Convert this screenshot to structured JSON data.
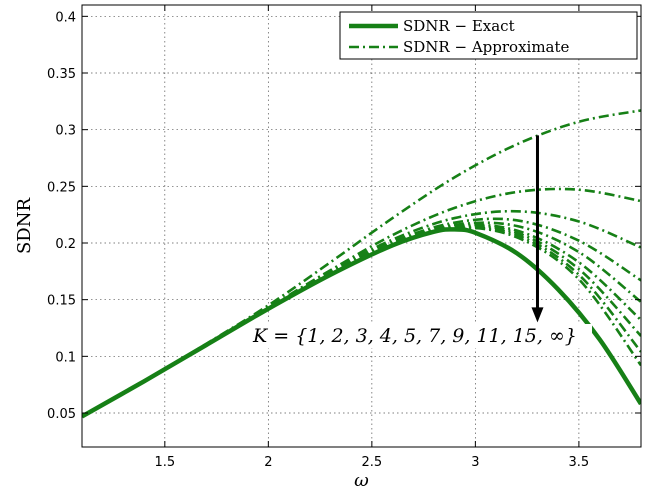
{
  "chart_data": {
    "type": "line",
    "xlabel": "ω",
    "ylabel": "SDNR",
    "xlim": [
      1.1,
      3.8
    ],
    "ylim": [
      0.02,
      0.41
    ],
    "xticks": [
      1.5,
      2,
      2.5,
      3,
      3.5
    ],
    "xtick_labels": [
      "1.5",
      "2",
      "2.5",
      "3",
      "3.5"
    ],
    "yticks": [
      0.05,
      0.1,
      0.15,
      0.2,
      0.25,
      0.3,
      0.35,
      0.4
    ],
    "ytick_labels": [
      "0.05",
      "0.1",
      "0.15",
      "0.2",
      "0.25",
      "0.3",
      "0.35",
      "0.4"
    ],
    "grid": true,
    "legend_position": "top-right",
    "color": "#168016",
    "series": [
      {
        "name": "SDNR − Exact",
        "style": "solid",
        "x": [
          1.1,
          1.4,
          1.7,
          2.0,
          2.3,
          2.6,
          2.8,
          2.9,
          3.0,
          3.2,
          3.4,
          3.6,
          3.8
        ],
        "y": [
          0.047,
          0.078,
          0.11,
          0.142,
          0.172,
          0.198,
          0.21,
          0.212,
          0.209,
          0.191,
          0.159,
          0.115,
          0.058
        ]
      },
      {
        "name": "SDNR − Approximate",
        "style": "dashdot",
        "x": [
          1.1,
          1.4,
          1.7,
          2.0,
          2.3,
          2.6,
          2.9,
          3.2,
          3.5,
          3.8
        ],
        "y": [
          0.047,
          0.078,
          0.111,
          0.145,
          0.183,
          0.222,
          0.258,
          0.287,
          0.307,
          0.317
        ]
      },
      {
        "style": "dashdot",
        "x": [
          1.1,
          1.4,
          1.7,
          2.0,
          2.3,
          2.6,
          2.9,
          3.2,
          3.5,
          3.8
        ],
        "y": [
          0.047,
          0.078,
          0.11,
          0.143,
          0.176,
          0.207,
          0.231,
          0.245,
          0.247,
          0.237
        ]
      },
      {
        "style": "dashdot",
        "x": [
          1.1,
          1.4,
          1.7,
          2.0,
          2.3,
          2.6,
          2.9,
          3.2,
          3.5,
          3.8
        ],
        "y": [
          0.047,
          0.078,
          0.11,
          0.143,
          0.175,
          0.203,
          0.222,
          0.228,
          0.219,
          0.196
        ]
      },
      {
        "style": "dashdot",
        "x": [
          1.1,
          1.4,
          1.7,
          2.0,
          2.3,
          2.6,
          2.9,
          3.2,
          3.5,
          3.8
        ],
        "y": [
          0.047,
          0.078,
          0.11,
          0.143,
          0.174,
          0.201,
          0.218,
          0.22,
          0.202,
          0.167
        ]
      },
      {
        "style": "dashdot",
        "x": [
          1.1,
          1.4,
          1.7,
          2.0,
          2.3,
          2.6,
          2.9,
          3.2,
          3.5,
          3.8
        ],
        "y": [
          0.047,
          0.078,
          0.11,
          0.142,
          0.173,
          0.2,
          0.216,
          0.215,
          0.192,
          0.148
        ]
      },
      {
        "style": "dashdot",
        "x": [
          1.1,
          1.4,
          1.7,
          2.0,
          2.3,
          2.6,
          2.9,
          3.2,
          3.5,
          3.8
        ],
        "y": [
          0.047,
          0.078,
          0.11,
          0.142,
          0.173,
          0.199,
          0.215,
          0.211,
          0.183,
          0.132
        ]
      },
      {
        "style": "dashdot",
        "x": [
          1.1,
          1.4,
          1.7,
          2.0,
          2.3,
          2.6,
          2.9,
          3.2,
          3.5,
          3.8
        ],
        "y": [
          0.047,
          0.078,
          0.11,
          0.142,
          0.172,
          0.199,
          0.214,
          0.209,
          0.177,
          0.118
        ]
      },
      {
        "style": "dashdot",
        "x": [
          1.1,
          1.4,
          1.7,
          2.0,
          2.3,
          2.6,
          2.9,
          3.2,
          3.5,
          3.8
        ],
        "y": [
          0.047,
          0.078,
          0.11,
          0.142,
          0.172,
          0.199,
          0.213,
          0.207,
          0.172,
          0.104
        ]
      },
      {
        "style": "dashdot",
        "x": [
          1.1,
          1.4,
          1.7,
          2.0,
          2.3,
          2.6,
          2.9,
          3.2,
          3.5,
          3.8
        ],
        "y": [
          0.047,
          0.078,
          0.11,
          0.142,
          0.172,
          0.198,
          0.213,
          0.205,
          0.168,
          0.092
        ]
      }
    ],
    "annotation": {
      "text": "K = {1, 2, 3, 4, 5, 7, 9, 11, 15, ∞}",
      "arrow_from": [
        3.3,
        0.295
      ],
      "arrow_to": [
        3.3,
        0.13
      ]
    }
  }
}
